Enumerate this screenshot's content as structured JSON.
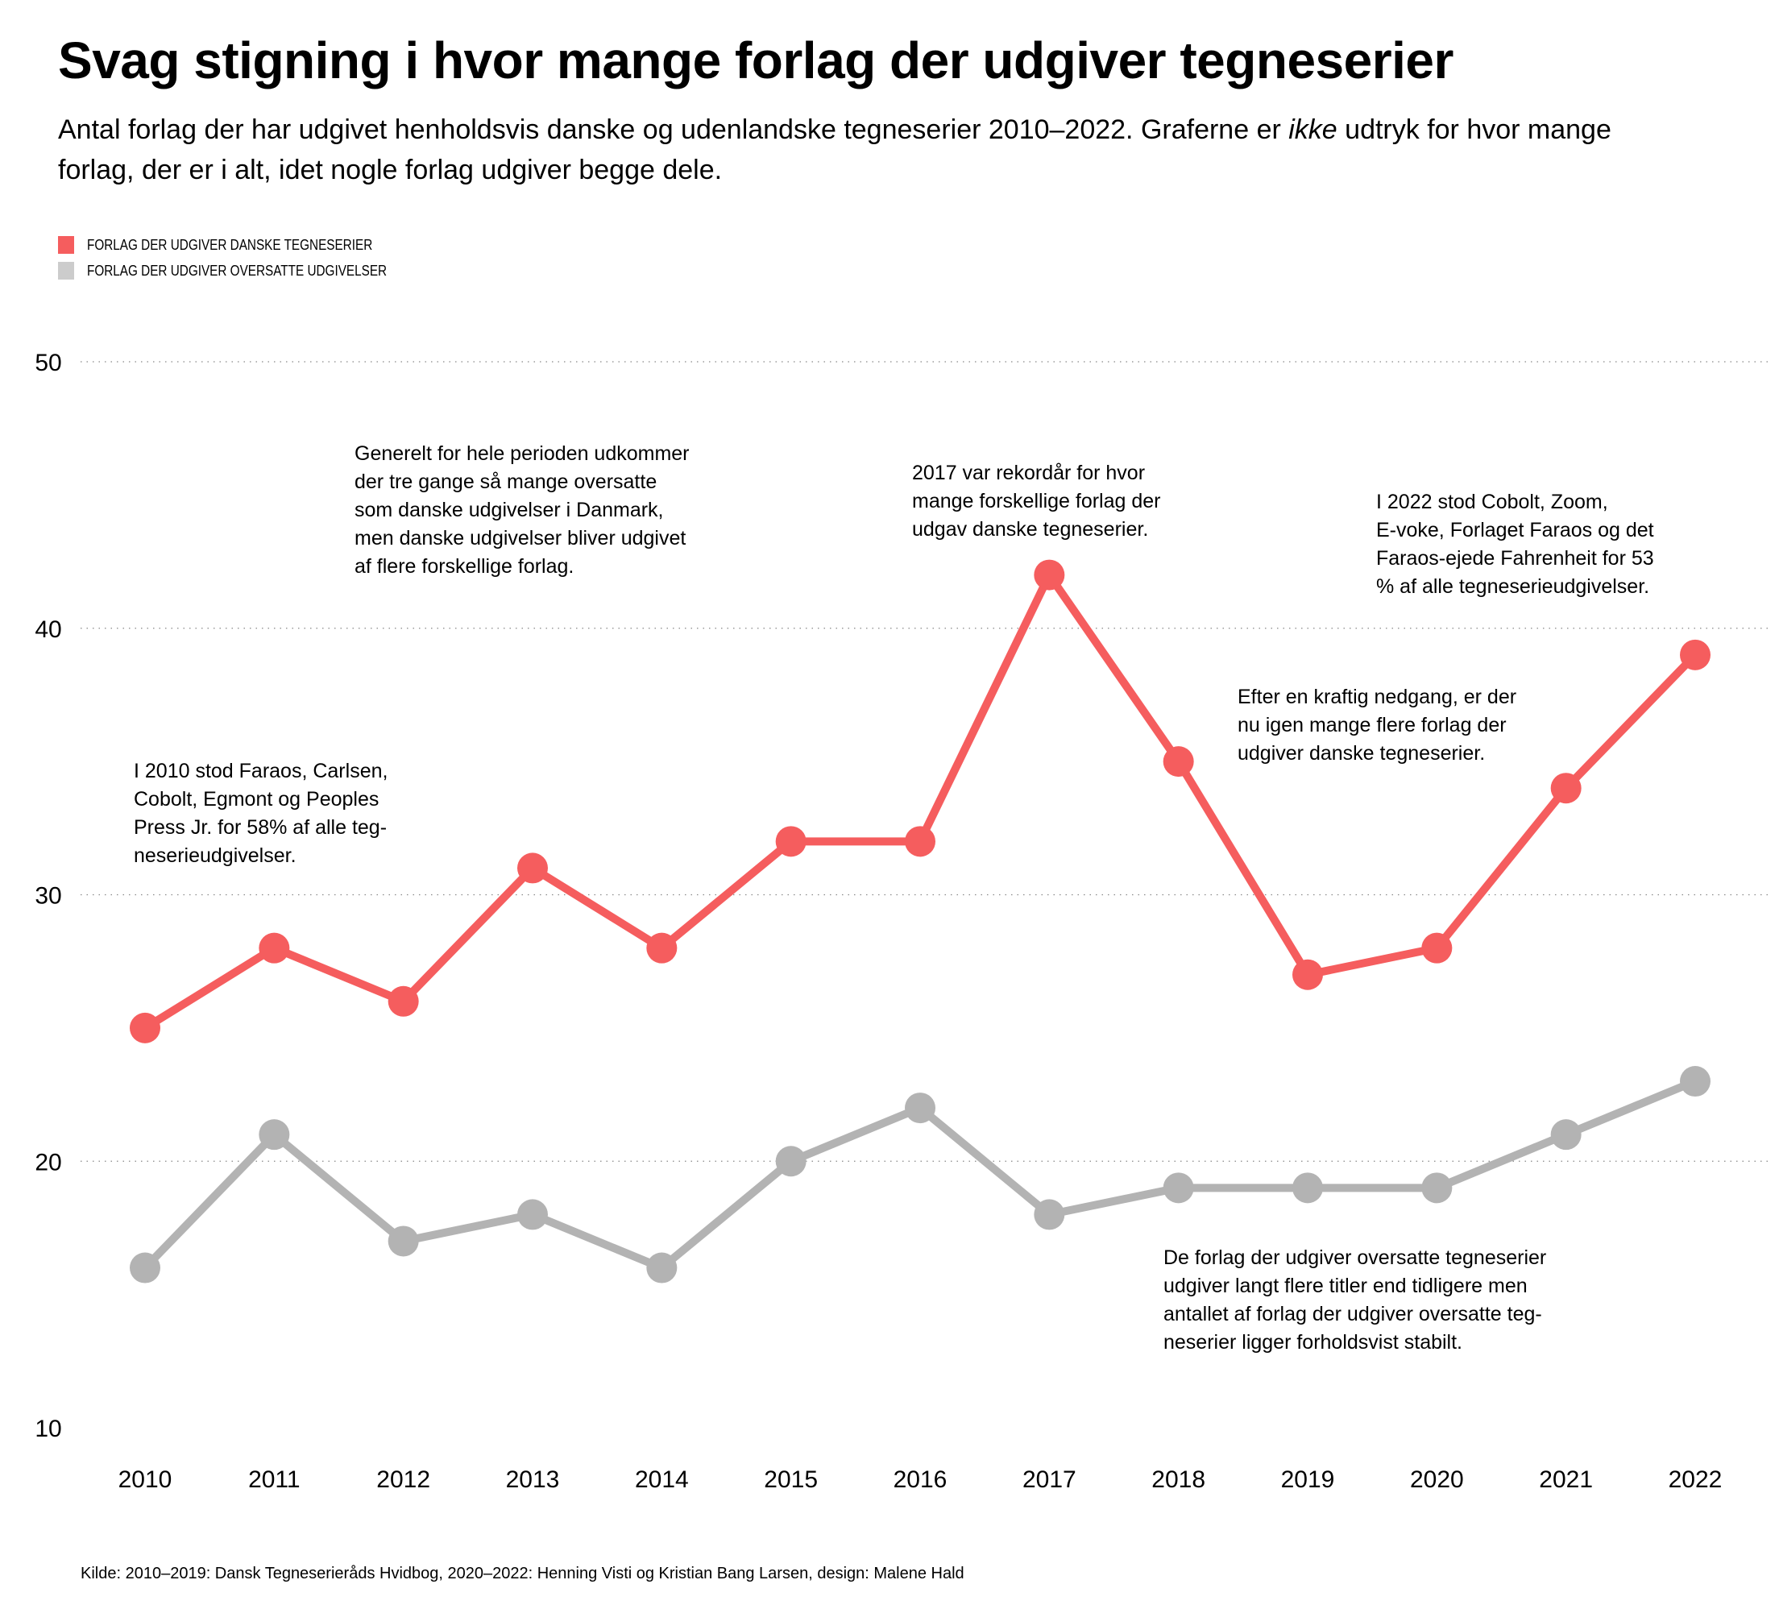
{
  "header": {
    "title": "Svag stigning i hvor mange forlag der udgiver tegneserier",
    "subtitle_part1": "Antal forlag der har udgivet henholdsvis danske og udenlandske tegneserier 2010–2022. Graferne er ",
    "subtitle_emph": "ikke",
    "subtitle_part2": " udtryk for hvor mange forlag, der er i alt, idet nogle forlag udgiver begge dele."
  },
  "colors": {
    "danish": "#F55D5E",
    "translated": "#B3B3B3",
    "legend_translated": "#CCCCCC",
    "grid": "#888888"
  },
  "legend": [
    {
      "label": "FORLAG DER UDGIVER DANSKE TEGNESERIER",
      "series": "danish"
    },
    {
      "label": "FORLAG DER UDGIVER OVERSATTE UDGIVELSER",
      "series": "translated"
    }
  ],
  "annotations": [
    {
      "id": "annot-2010",
      "lines": [
        "I 2010 stod Faraos, Carlsen,",
        "Cobolt, Egmont og Peoples",
        "Press Jr. for 58% af alle teg-",
        "neserieudgivelser."
      ]
    },
    {
      "id": "annot-period",
      "lines": [
        "Generelt for hele perioden udkommer",
        "der tre gange så mange oversatte",
        "som danske udgivelser i Danmark,",
        "men danske udgivelser bliver udgivet",
        "af flere forskellige forlag."
      ]
    },
    {
      "id": "annot-2017",
      "lines": [
        "2017 var rekordår for hvor",
        "mange forskellige forlag der",
        "udgav danske tegneserier."
      ]
    },
    {
      "id": "annot-2022",
      "lines": [
        "I 2022 stod Cobolt, Zoom,",
        "E-voke, Forlaget Faraos og det",
        "Faraos-ejede Fahrenheit for 53",
        "% af alle tegneserieudgivelser."
      ]
    },
    {
      "id": "annot-decline",
      "lines": [
        "Efter en kraftig nedgang, er der",
        "nu igen mange flere forlag der",
        "udgiver danske tegneserier."
      ]
    },
    {
      "id": "annot-translated",
      "lines": [
        "De forlag der udgiver oversatte tegneserier",
        "udgiver langt flere titler end tidligere men",
        "antallet af forlag der udgiver oversatte teg-",
        "neserier ligger forholdsvist stabilt."
      ]
    }
  ],
  "source": "Kilde: 2010–2019: Dansk Tegneserieråds Hvidbog, 2020–2022: Henning Visti og Kristian Bang Larsen, design: Malene Hald",
  "chart_data": {
    "type": "line",
    "title": "Svag stigning i hvor mange forlag der udgiver tegneserier",
    "xlabel": "",
    "ylabel": "",
    "x": [
      "2010",
      "2011",
      "2012",
      "2013",
      "2014",
      "2015",
      "2016",
      "2017",
      "2018",
      "2019",
      "2020",
      "2021",
      "2022"
    ],
    "series": [
      {
        "name": "Forlag der udgiver danske tegneserier",
        "key": "danish",
        "values": [
          25,
          28,
          26,
          31,
          28,
          32,
          32,
          42,
          35,
          27,
          28,
          34,
          39
        ]
      },
      {
        "name": "Forlag der udgiver oversatte udgivelser",
        "key": "translated",
        "values": [
          16,
          21,
          17,
          18,
          16,
          20,
          22,
          18,
          19,
          19,
          19,
          21,
          23
        ]
      }
    ],
    "ylim": [
      10,
      50
    ],
    "yticks": [
      10,
      20,
      30,
      40,
      50
    ],
    "grid": "horizontal dotted",
    "legend_position": "top-left"
  }
}
